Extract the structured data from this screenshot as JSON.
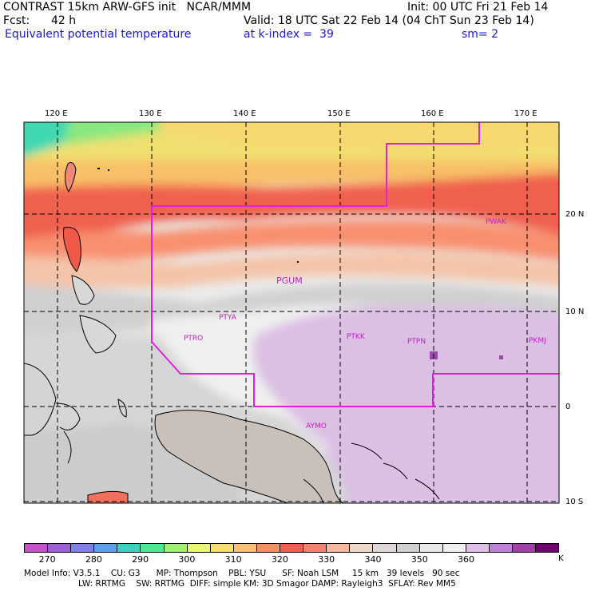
{
  "header": {
    "line1_left": "CONTRAST 15km ARW-GFS init   NCAR/MMM",
    "line1_right": "Init: 00 UTC Fri 21 Feb 14",
    "fcst_label": "Fcst:",
    "fcst_value": "42 h",
    "valid": "Valid: 18 UTC Sat 22 Feb 14 (04 ChT Sun 23 Feb 14)",
    "field_name": "Equivalent potential temperature",
    "level": "at k-index =  39",
    "smoothing": "sm= 2"
  },
  "map": {
    "lon_labels": [
      "120 E",
      "130 E",
      "140 E",
      "150 E",
      "160 E",
      "170 E"
    ],
    "lat_labels": [
      "20 N",
      "10 N",
      "0",
      "10 S"
    ],
    "stations": [
      "PWAK",
      "PGUM",
      "PTYA",
      "PTRO",
      "PTKK",
      "PTPN",
      "PKMJ",
      "AYMO"
    ],
    "boundary_color": "#e020e0",
    "grid_color": "#000000"
  },
  "legend": {
    "unit": "K",
    "tick_labels": [
      "270",
      "280",
      "290",
      "300",
      "310",
      "320",
      "330",
      "340",
      "350",
      "360"
    ],
    "colors": [
      "#c850c8",
      "#a060d8",
      "#8080e8",
      "#5aa0ee",
      "#40d0c0",
      "#50e890",
      "#a0f070",
      "#e8f870",
      "#f8e070",
      "#f8c070",
      "#f89060",
      "#f06050",
      "#f88070",
      "#f8b8a0",
      "#f0d8c8",
      "#e0d8d8",
      "#d0d0d0",
      "#e8e8e8",
      "#f0f0f0",
      "#e0c0e8",
      "#c080d8",
      "#a040a8",
      "#700070"
    ]
  },
  "footer": {
    "line1": "Model Info: V3.5.1    CU: G3      MP: Thompson    PBL: YSU      SF: Noah LSM     15 km   39 levels   90 sec",
    "line2": "LW: RRTMG    SW: RRTMG  DIFF: simple KM: 3D Smagor DAMP: Rayleigh3  SFLAY: Rev MM5"
  }
}
